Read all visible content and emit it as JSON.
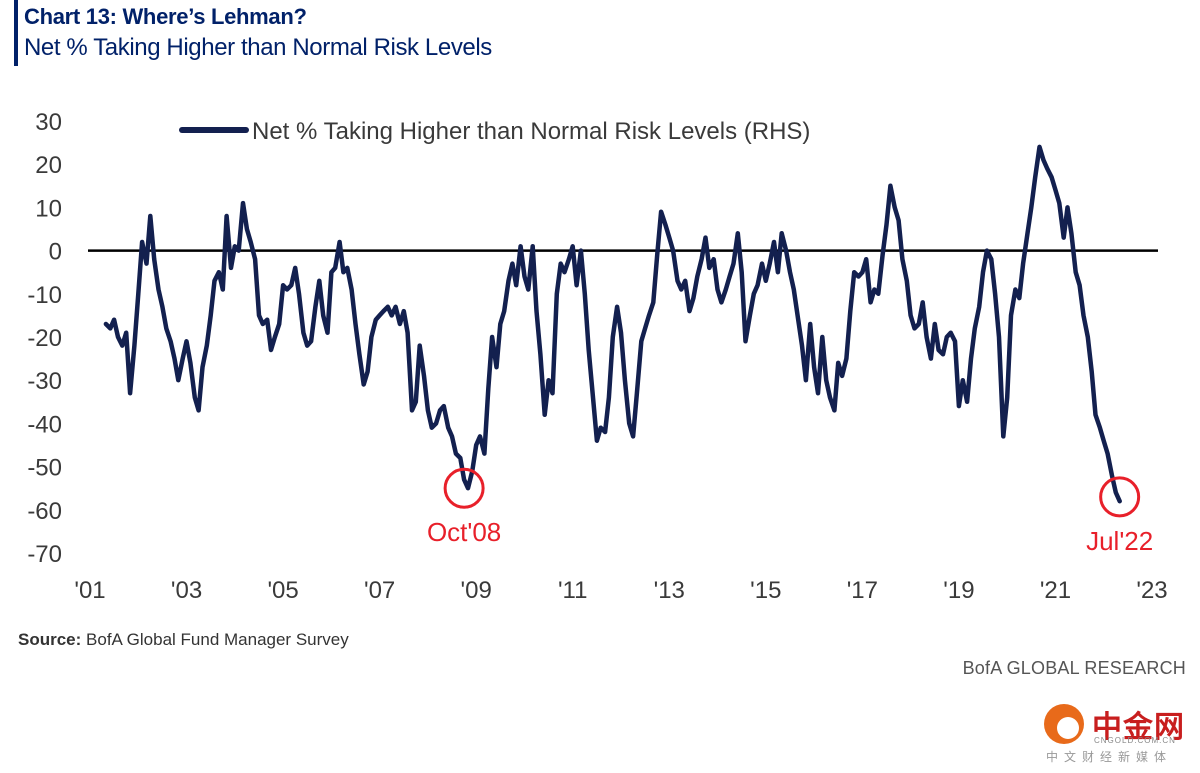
{
  "header": {
    "title": "Chart 13: Where’s Lehman?",
    "subtitle": "Net % Taking Higher than Normal Risk Levels"
  },
  "footer": {
    "source_label": "Source:",
    "source_text": " BofA Global Fund Manager Survey",
    "credit": "BofA GLOBAL RESEARCH"
  },
  "watermark": {
    "name": "中金网",
    "url": "CNGOLD.COM.CN",
    "tagline": "中文财经新媒体"
  },
  "colors": {
    "series": "#13204f",
    "annotation": "#e8202a",
    "title": "#012169"
  },
  "chart_data": {
    "type": "line",
    "title": "Chart 13: Where’s Lehman?",
    "subtitle": "Net % Taking Higher than Normal Risk Levels",
    "ylim": [
      -70,
      30
    ],
    "yticks": [
      30,
      20,
      10,
      0,
      -10,
      -20,
      -30,
      -40,
      -50,
      -60,
      -70
    ],
    "xlim": [
      2001,
      2023
    ],
    "xticks": [
      {
        "x": 2001,
        "label": "'01"
      },
      {
        "x": 2003,
        "label": "'03"
      },
      {
        "x": 2005,
        "label": "'05"
      },
      {
        "x": 2007,
        "label": "'07"
      },
      {
        "x": 2009,
        "label": "'09"
      },
      {
        "x": 2011,
        "label": "'11"
      },
      {
        "x": 2013,
        "label": "'13"
      },
      {
        "x": 2015,
        "label": "'15"
      },
      {
        "x": 2017,
        "label": "'17"
      },
      {
        "x": 2019,
        "label": "'19"
      },
      {
        "x": 2021,
        "label": "'21"
      },
      {
        "x": 2023,
        "label": "'23"
      }
    ],
    "zero_line": true,
    "grid": false,
    "legend": {
      "position": "top-left"
    },
    "series": [
      {
        "name": "Net % Taking Higher than Normal Risk Levels (RHS)",
        "points": [
          [
            2001.33,
            -17
          ],
          [
            2001.42,
            -18
          ],
          [
            2001.5,
            -16
          ],
          [
            2001.58,
            -20
          ],
          [
            2001.67,
            -22
          ],
          [
            2001.75,
            -19
          ],
          [
            2001.83,
            -33
          ],
          [
            2001.92,
            -22
          ],
          [
            2002.0,
            -10
          ],
          [
            2002.08,
            2
          ],
          [
            2002.17,
            -3
          ],
          [
            2002.25,
            8
          ],
          [
            2002.33,
            -2
          ],
          [
            2002.42,
            -9
          ],
          [
            2002.5,
            -13
          ],
          [
            2002.58,
            -18
          ],
          [
            2002.67,
            -21
          ],
          [
            2002.75,
            -25
          ],
          [
            2002.83,
            -30
          ],
          [
            2002.92,
            -25
          ],
          [
            2003.0,
            -21
          ],
          [
            2003.08,
            -26
          ],
          [
            2003.17,
            -34
          ],
          [
            2003.25,
            -37
          ],
          [
            2003.33,
            -27
          ],
          [
            2003.42,
            -22
          ],
          [
            2003.5,
            -15
          ],
          [
            2003.58,
            -7
          ],
          [
            2003.67,
            -5
          ],
          [
            2003.75,
            -9
          ],
          [
            2003.83,
            8
          ],
          [
            2003.92,
            -4
          ],
          [
            2004.0,
            1
          ],
          [
            2004.08,
            0
          ],
          [
            2004.17,
            11
          ],
          [
            2004.25,
            5
          ],
          [
            2004.33,
            2
          ],
          [
            2004.42,
            -2
          ],
          [
            2004.5,
            -15
          ],
          [
            2004.58,
            -17
          ],
          [
            2004.67,
            -16
          ],
          [
            2004.75,
            -23
          ],
          [
            2004.83,
            -20
          ],
          [
            2004.92,
            -17
          ],
          [
            2005.0,
            -8
          ],
          [
            2005.08,
            -9
          ],
          [
            2005.17,
            -8
          ],
          [
            2005.25,
            -4
          ],
          [
            2005.33,
            -10
          ],
          [
            2005.42,
            -19
          ],
          [
            2005.5,
            -22
          ],
          [
            2005.58,
            -21
          ],
          [
            2005.67,
            -13
          ],
          [
            2005.75,
            -7
          ],
          [
            2005.83,
            -15
          ],
          [
            2005.92,
            -19
          ],
          [
            2006.0,
            -5
          ],
          [
            2006.08,
            -4
          ],
          [
            2006.17,
            2
          ],
          [
            2006.25,
            -5
          ],
          [
            2006.33,
            -4
          ],
          [
            2006.42,
            -9
          ],
          [
            2006.5,
            -17
          ],
          [
            2006.58,
            -24
          ],
          [
            2006.67,
            -31
          ],
          [
            2006.75,
            -28
          ],
          [
            2006.83,
            -20
          ],
          [
            2006.92,
            -16
          ],
          [
            2007.0,
            -15
          ],
          [
            2007.08,
            -14
          ],
          [
            2007.17,
            -13
          ],
          [
            2007.25,
            -15
          ],
          [
            2007.33,
            -13
          ],
          [
            2007.42,
            -17
          ],
          [
            2007.5,
            -14
          ],
          [
            2007.58,
            -19
          ],
          [
            2007.67,
            -37
          ],
          [
            2007.75,
            -35
          ],
          [
            2007.83,
            -22
          ],
          [
            2007.92,
            -29
          ],
          [
            2008.0,
            -37
          ],
          [
            2008.08,
            -41
          ],
          [
            2008.17,
            -40
          ],
          [
            2008.25,
            -37
          ],
          [
            2008.33,
            -36
          ],
          [
            2008.42,
            -41
          ],
          [
            2008.5,
            -43
          ],
          [
            2008.58,
            -47
          ],
          [
            2008.67,
            -48
          ],
          [
            2008.75,
            -53
          ],
          [
            2008.83,
            -55
          ],
          [
            2008.92,
            -51
          ],
          [
            2009.0,
            -45
          ],
          [
            2009.08,
            -43
          ],
          [
            2009.17,
            -47
          ],
          [
            2009.25,
            -32
          ],
          [
            2009.33,
            -20
          ],
          [
            2009.42,
            -27
          ],
          [
            2009.5,
            -17
          ],
          [
            2009.58,
            -14
          ],
          [
            2009.67,
            -7
          ],
          [
            2009.75,
            -3
          ],
          [
            2009.83,
            -8
          ],
          [
            2009.92,
            1
          ],
          [
            2010.0,
            -6
          ],
          [
            2010.08,
            -9
          ],
          [
            2010.17,
            1
          ],
          [
            2010.25,
            -14
          ],
          [
            2010.33,
            -24
          ],
          [
            2010.42,
            -38
          ],
          [
            2010.5,
            -30
          ],
          [
            2010.58,
            -33
          ],
          [
            2010.67,
            -10
          ],
          [
            2010.75,
            -3
          ],
          [
            2010.83,
            -5
          ],
          [
            2010.92,
            -2
          ],
          [
            2011.0,
            1
          ],
          [
            2011.08,
            -8
          ],
          [
            2011.17,
            0
          ],
          [
            2011.25,
            -10
          ],
          [
            2011.33,
            -23
          ],
          [
            2011.42,
            -34
          ],
          [
            2011.5,
            -44
          ],
          [
            2011.58,
            -41
          ],
          [
            2011.67,
            -42
          ],
          [
            2011.75,
            -34
          ],
          [
            2011.83,
            -20
          ],
          [
            2011.92,
            -13
          ],
          [
            2012.0,
            -19
          ],
          [
            2012.08,
            -30
          ],
          [
            2012.17,
            -40
          ],
          [
            2012.25,
            -43
          ],
          [
            2012.33,
            -33
          ],
          [
            2012.42,
            -21
          ],
          [
            2012.5,
            -18
          ],
          [
            2012.58,
            -15
          ],
          [
            2012.67,
            -12
          ],
          [
            2012.75,
            -1
          ],
          [
            2012.83,
            9
          ],
          [
            2012.92,
            6
          ],
          [
            2013.0,
            3
          ],
          [
            2013.08,
            0
          ],
          [
            2013.17,
            -7
          ],
          [
            2013.25,
            -9
          ],
          [
            2013.33,
            -7
          ],
          [
            2013.42,
            -14
          ],
          [
            2013.5,
            -11
          ],
          [
            2013.58,
            -6
          ],
          [
            2013.67,
            -2
          ],
          [
            2013.75,
            3
          ],
          [
            2013.83,
            -4
          ],
          [
            2013.92,
            -2
          ],
          [
            2014.0,
            -9
          ],
          [
            2014.08,
            -12
          ],
          [
            2014.17,
            -9
          ],
          [
            2014.25,
            -6
          ],
          [
            2014.33,
            -3
          ],
          [
            2014.42,
            4
          ],
          [
            2014.5,
            -5
          ],
          [
            2014.58,
            -21
          ],
          [
            2014.67,
            -15
          ],
          [
            2014.75,
            -10
          ],
          [
            2014.83,
            -8
          ],
          [
            2014.92,
            -3
          ],
          [
            2015.0,
            -7
          ],
          [
            2015.08,
            -3
          ],
          [
            2015.17,
            2
          ],
          [
            2015.25,
            -5
          ],
          [
            2015.33,
            4
          ],
          [
            2015.42,
            0
          ],
          [
            2015.5,
            -5
          ],
          [
            2015.58,
            -9
          ],
          [
            2015.67,
            -16
          ],
          [
            2015.75,
            -22
          ],
          [
            2015.83,
            -30
          ],
          [
            2015.92,
            -17
          ],
          [
            2016.0,
            -27
          ],
          [
            2016.08,
            -33
          ],
          [
            2016.17,
            -20
          ],
          [
            2016.25,
            -30
          ],
          [
            2016.33,
            -34
          ],
          [
            2016.42,
            -37
          ],
          [
            2016.5,
            -26
          ],
          [
            2016.58,
            -29
          ],
          [
            2016.67,
            -25
          ],
          [
            2016.75,
            -14
          ],
          [
            2016.83,
            -5
          ],
          [
            2016.92,
            -6
          ],
          [
            2017.0,
            -5
          ],
          [
            2017.08,
            -2
          ],
          [
            2017.17,
            -12
          ],
          [
            2017.25,
            -9
          ],
          [
            2017.33,
            -10
          ],
          [
            2017.42,
            -1
          ],
          [
            2017.5,
            6
          ],
          [
            2017.58,
            15
          ],
          [
            2017.67,
            10
          ],
          [
            2017.75,
            7
          ],
          [
            2017.83,
            -2
          ],
          [
            2017.92,
            -7
          ],
          [
            2018.0,
            -15
          ],
          [
            2018.08,
            -18
          ],
          [
            2018.17,
            -17
          ],
          [
            2018.25,
            -12
          ],
          [
            2018.33,
            -20
          ],
          [
            2018.42,
            -25
          ],
          [
            2018.5,
            -17
          ],
          [
            2018.58,
            -23
          ],
          [
            2018.67,
            -24
          ],
          [
            2018.75,
            -20
          ],
          [
            2018.83,
            -19
          ],
          [
            2018.92,
            -21
          ],
          [
            2019.0,
            -36
          ],
          [
            2019.08,
            -30
          ],
          [
            2019.17,
            -35
          ],
          [
            2019.25,
            -25
          ],
          [
            2019.33,
            -18
          ],
          [
            2019.42,
            -13
          ],
          [
            2019.5,
            -5
          ],
          [
            2019.58,
            0
          ],
          [
            2019.67,
            -2
          ],
          [
            2019.75,
            -10
          ],
          [
            2019.83,
            -20
          ],
          [
            2019.92,
            -43
          ],
          [
            2020.0,
            -34
          ],
          [
            2020.08,
            -15
          ],
          [
            2020.17,
            -9
          ],
          [
            2020.25,
            -11
          ],
          [
            2020.33,
            -3
          ],
          [
            2020.42,
            4
          ],
          [
            2020.5,
            10
          ],
          [
            2020.58,
            17
          ],
          [
            2020.67,
            24
          ],
          [
            2020.75,
            21
          ],
          [
            2020.83,
            19
          ],
          [
            2020.92,
            17
          ],
          [
            2021.0,
            14
          ],
          [
            2021.08,
            11
          ],
          [
            2021.17,
            3
          ],
          [
            2021.25,
            10
          ],
          [
            2021.33,
            4
          ],
          [
            2021.42,
            -5
          ],
          [
            2021.5,
            -8
          ],
          [
            2021.58,
            -15
          ],
          [
            2021.67,
            -20
          ],
          [
            2021.75,
            -28
          ],
          [
            2021.83,
            -38
          ],
          [
            2021.92,
            -41
          ],
          [
            2022.0,
            -44
          ],
          [
            2022.08,
            -47
          ],
          [
            2022.17,
            -52
          ],
          [
            2022.25,
            -56
          ],
          [
            2022.33,
            -58
          ]
        ]
      }
    ],
    "annotations": [
      {
        "label": "Oct'08",
        "x": 2008.75,
        "y": -55,
        "marker": "circle",
        "label_side": "below"
      },
      {
        "label": "Jul'22",
        "x": 2022.33,
        "y": -57,
        "marker": "circle",
        "label_side": "below"
      }
    ]
  }
}
